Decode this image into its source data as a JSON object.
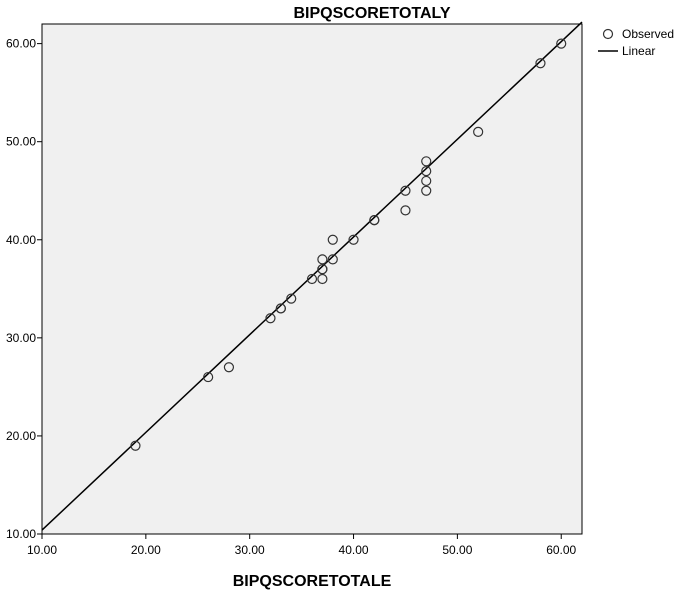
{
  "chart_data": {
    "type": "scatter",
    "title": "BIPQSCORETOTALY",
    "xlabel": "BIPQSCORETOTALE",
    "ylabel": "",
    "xlim": [
      10,
      62
    ],
    "ylim": [
      10,
      62
    ],
    "x_ticks": [
      "10.00",
      "20.00",
      "30.00",
      "40.00",
      "50.00",
      "60.00"
    ],
    "y_ticks": [
      "10.00",
      "20.00",
      "30.00",
      "40.00",
      "50.00",
      "60.00"
    ],
    "x_tick_values": [
      10,
      20,
      30,
      40,
      50,
      60
    ],
    "y_tick_values": [
      10,
      20,
      30,
      40,
      50,
      60
    ],
    "grid": false,
    "legend_position": "top-right",
    "legend": [
      "Observed",
      "Linear"
    ],
    "series": [
      {
        "name": "Observed",
        "kind": "points",
        "points": [
          [
            19,
            19
          ],
          [
            26,
            26
          ],
          [
            28,
            27
          ],
          [
            32,
            32
          ],
          [
            33,
            33
          ],
          [
            33,
            33
          ],
          [
            34,
            34
          ],
          [
            36,
            36
          ],
          [
            37,
            36
          ],
          [
            37,
            37
          ],
          [
            37,
            37
          ],
          [
            37,
            38
          ],
          [
            38,
            38
          ],
          [
            38,
            40
          ],
          [
            40,
            40
          ],
          [
            42,
            42
          ],
          [
            42,
            42
          ],
          [
            45,
            43
          ],
          [
            45,
            45
          ],
          [
            47,
            45
          ],
          [
            47,
            46
          ],
          [
            47,
            47
          ],
          [
            47,
            48
          ],
          [
            52,
            51
          ],
          [
            58,
            58
          ],
          [
            60,
            60
          ]
        ]
      },
      {
        "name": "Linear",
        "kind": "line",
        "points": [
          [
            10,
            10.4
          ],
          [
            62,
            62.2
          ]
        ]
      }
    ],
    "colors": {
      "plot_background": "#f0f0f0",
      "marker": "#333333",
      "line": "#000000"
    }
  }
}
